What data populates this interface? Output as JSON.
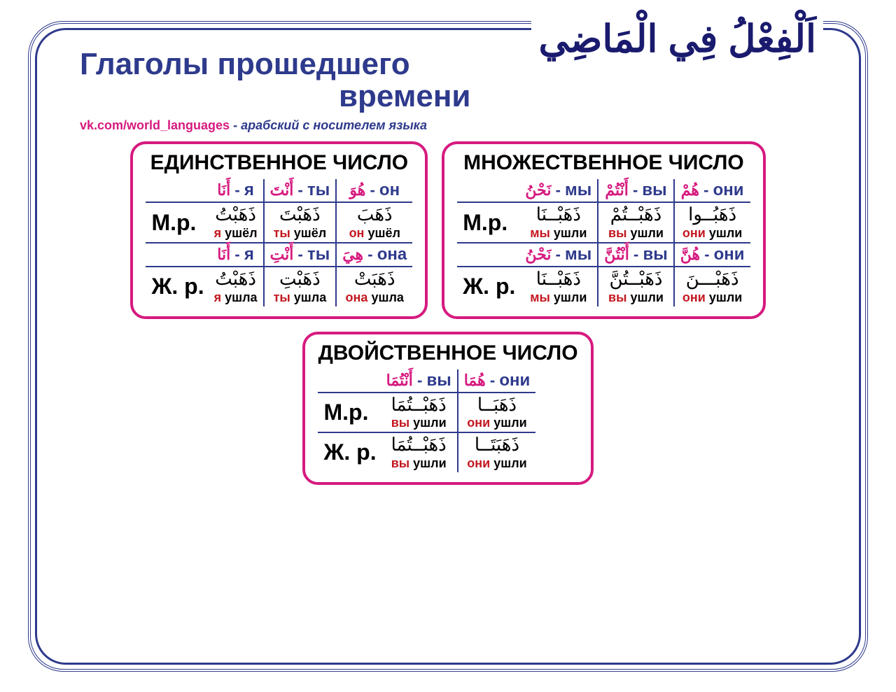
{
  "colors": {
    "frame": "#2e3a8c",
    "panel_border": "#d61a7f",
    "grid_line": "#2e3a8c",
    "arabic_pronoun": "#d61a7f",
    "ru_pronoun": "#2e3a8c",
    "verb": "#000000",
    "translation_pronoun": "#c31820",
    "background": "#ffffff"
  },
  "typography": {
    "title_fontsize": 44,
    "panel_title_fontsize": 30,
    "gender_label_fontsize": 32,
    "arabic_title_fontsize": 54
  },
  "titles": {
    "arabic": "اَلْفِعْلُ فِي الْمَاضِي",
    "ru_line1": "Глаголы прошедшего",
    "ru_line2": "времени"
  },
  "subtitle": {
    "link": "vk.com/world_languages",
    "desc": " - арабский с носителем языка"
  },
  "gender_labels": {
    "m": "М.р.",
    "f": "Ж. р."
  },
  "panels": {
    "singular": {
      "title": "ЕДИНСТВЕННОЕ ЧИСЛО",
      "cols": [
        {
          "ar": "أَنَا",
          "ru": "я"
        },
        {
          "ar": "أَنْتَ",
          "ru": "ты"
        },
        {
          "ar": "هُوَ",
          "ru": "он"
        }
      ],
      "cols_f": [
        {
          "ar": "أَنَا",
          "ru": "я"
        },
        {
          "ar": "أَنْتِ",
          "ru": "ты"
        },
        {
          "ar": "هِيَ",
          "ru": "она"
        }
      ],
      "m": [
        {
          "verb": "ذَهَبْتُ",
          "tr_pr": "я",
          "tr_rest": " ушёл"
        },
        {
          "verb": "ذَهَبْتَ",
          "tr_pr": "ты",
          "tr_rest": " ушёл"
        },
        {
          "verb": "ذَهَبَ",
          "tr_pr": "он",
          "tr_rest": " ушёл"
        }
      ],
      "f": [
        {
          "verb": "ذَهَبْتُ",
          "tr_pr": "я",
          "tr_rest": " ушла"
        },
        {
          "verb": "ذَهَبْتِ",
          "tr_pr": "ты",
          "tr_rest": " ушла"
        },
        {
          "verb": "ذَهَبَتْ",
          "tr_pr": "она",
          "tr_rest": " ушла"
        }
      ]
    },
    "plural": {
      "title": "МНОЖЕСТВЕННОЕ ЧИСЛО",
      "cols": [
        {
          "ar": "نَحْنُ",
          "ru": "мы"
        },
        {
          "ar": "أَنْتُمْ",
          "ru": "вы"
        },
        {
          "ar": "هُمْ",
          "ru": "они"
        }
      ],
      "cols_f": [
        {
          "ar": "نَحْنُ",
          "ru": "мы"
        },
        {
          "ar": "أَنْتُنَّ",
          "ru": "вы"
        },
        {
          "ar": "هُنَّ",
          "ru": "они"
        }
      ],
      "m": [
        {
          "verb": "ذَهَبْــنَا",
          "tr_pr": "мы",
          "tr_rest": " ушли"
        },
        {
          "verb": "ذَهَبْــتُمْ",
          "tr_pr": "вы",
          "tr_rest": " ушли"
        },
        {
          "verb": "ذَهَبُــوا",
          "tr_pr": "они",
          "tr_rest": " ушли"
        }
      ],
      "f": [
        {
          "verb": "ذَهَبْــنَا",
          "tr_pr": "мы",
          "tr_rest": " ушли"
        },
        {
          "verb": "ذَهَبْــتُنَّ",
          "tr_pr": "вы",
          "tr_rest": " ушли"
        },
        {
          "verb": "ذَهَبْـــنَ",
          "tr_pr": "они",
          "tr_rest": " ушли"
        }
      ]
    },
    "dual": {
      "title": "ДВОЙСТВЕННОЕ ЧИСЛО",
      "cols": [
        {
          "ar": "أَنْتُمَا",
          "ru": "вы"
        },
        {
          "ar": "هُمَا",
          "ru": "они"
        }
      ],
      "m": [
        {
          "verb": "ذَهَبْــتُمَا",
          "tr_pr": "вы",
          "tr_rest": " ушли"
        },
        {
          "verb": "ذَهَبَــا",
          "tr_pr": "они",
          "tr_rest": " ушли"
        }
      ],
      "f": [
        {
          "verb": "ذَهَبْــتُمَا",
          "tr_pr": "вы",
          "tr_rest": " ушли"
        },
        {
          "verb": "ذَهَبَتَــا",
          "tr_pr": "они",
          "tr_rest": " ушли"
        }
      ]
    }
  }
}
